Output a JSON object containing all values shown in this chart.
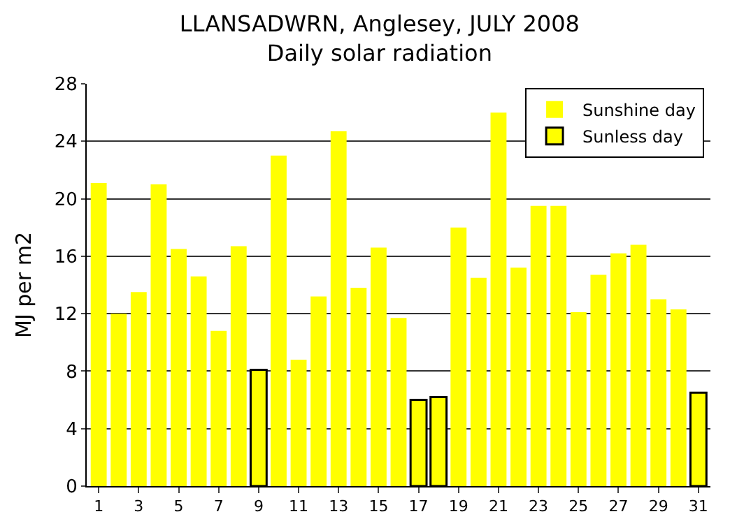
{
  "chart_data": {
    "type": "bar",
    "title": "LLANSADWRN, Anglesey, JULY 2008",
    "subtitle": "Daily solar radiation",
    "ylabel": "MJ per m2",
    "x": [
      1,
      2,
      3,
      4,
      5,
      6,
      7,
      8,
      9,
      10,
      11,
      12,
      13,
      14,
      15,
      16,
      17,
      18,
      19,
      20,
      21,
      22,
      23,
      24,
      25,
      26,
      27,
      28,
      29,
      30,
      31
    ],
    "series": [
      {
        "name": "Sunshine day",
        "color": "#ffff00",
        "values": [
          21.1,
          12,
          13.5,
          21,
          16.5,
          14.6,
          10.8,
          16.7,
          null,
          23,
          8.8,
          13.2,
          24.7,
          13.8,
          16.6,
          11.7,
          null,
          null,
          18,
          14.5,
          26,
          15.2,
          19.5,
          19.5,
          12.1,
          14.7,
          16.2,
          16.8,
          13,
          12.3,
          null
        ]
      },
      {
        "name": "Sunless day",
        "color": "#ffff00",
        "values": [
          null,
          null,
          null,
          null,
          null,
          null,
          null,
          null,
          8.1,
          null,
          null,
          null,
          null,
          null,
          null,
          null,
          6,
          6.2,
          null,
          null,
          null,
          null,
          null,
          null,
          null,
          null,
          null,
          null,
          null,
          null,
          6.5
        ]
      }
    ],
    "xlim": [
      0.4,
      31.6
    ],
    "xticks": [
      1,
      3,
      5,
      7,
      9,
      11,
      13,
      15,
      17,
      19,
      21,
      23,
      25,
      27,
      29,
      31
    ],
    "ylim": [
      0,
      28
    ],
    "yticks": [
      0,
      4,
      8,
      12,
      16,
      20,
      24,
      28
    ],
    "grid": "y",
    "legend": "top right"
  }
}
